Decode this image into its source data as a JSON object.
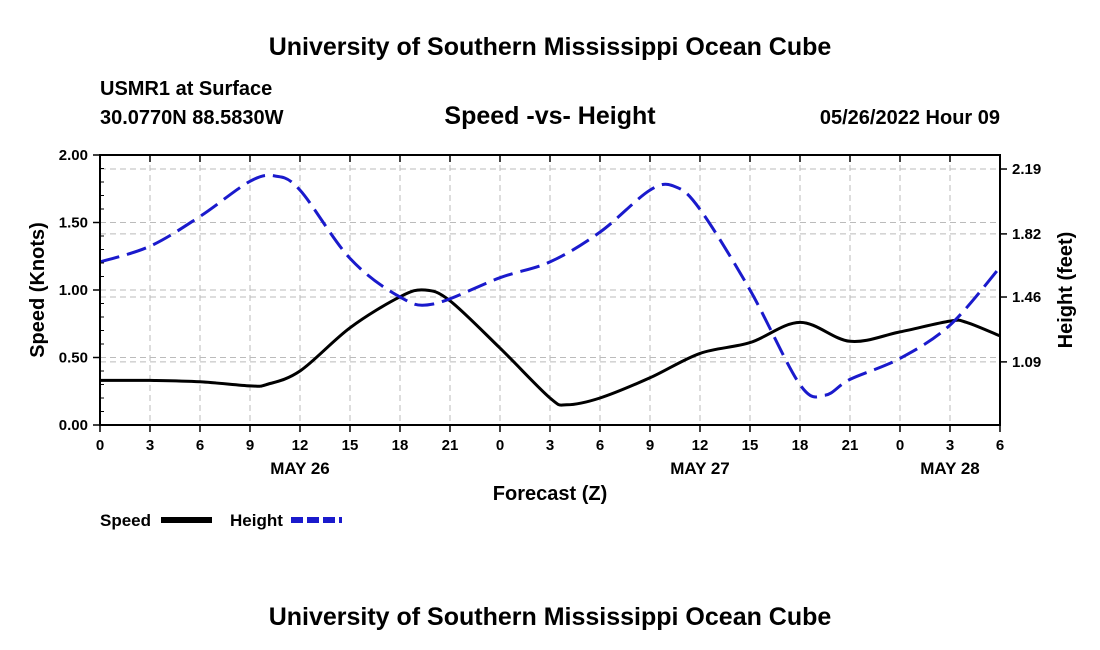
{
  "header": {
    "title": "University of Southern Mississippi Ocean Cube",
    "station": "USMR1 at Surface",
    "location": "30.0770N  88.5830W",
    "chart_title": "Speed -vs- Height",
    "timestamp": "05/26/2022 Hour 09"
  },
  "footer": {
    "title": "University of Southern Mississippi Ocean Cube"
  },
  "colors": {
    "speed": "#000000",
    "height": "#1a1acc",
    "grid": "#bbbbbb"
  },
  "chart_data": {
    "type": "line",
    "title": "Speed -vs- Height",
    "xlabel": "Forecast (Z)",
    "ylabel": "Speed (Knots)",
    "ylabel_right": "Height (feet)",
    "x_range": [
      0,
      54
    ],
    "x_ticks": [
      0,
      3,
      6,
      9,
      12,
      15,
      18,
      21,
      24,
      27,
      30,
      33,
      36,
      39,
      42,
      45,
      48,
      51,
      54
    ],
    "x_tick_labels": [
      "0",
      "3",
      "6",
      "9",
      "12",
      "15",
      "18",
      "21",
      "0",
      "3",
      "6",
      "9",
      "12",
      "15",
      "18",
      "21",
      "0",
      "3",
      "6"
    ],
    "date_labels": [
      {
        "hour": 12,
        "label": "MAY 26"
      },
      {
        "hour": 36,
        "label": "MAY 27"
      },
      {
        "hour": 51,
        "label": "MAY 28"
      }
    ],
    "ylim": [
      0,
      2.0
    ],
    "y_ticks": [
      0,
      0.5,
      1.0,
      1.5,
      2.0
    ],
    "y_tick_labels": [
      "0.00",
      "0.50",
      "1.00",
      "1.50",
      "2.00"
    ],
    "ylim_right": [
      0.73,
      2.27
    ],
    "y_ticks_right": [
      1.09,
      1.46,
      1.82,
      2.19
    ],
    "y_tick_labels_right": [
      "1.09",
      "1.46",
      "1.82",
      "2.19"
    ],
    "legend_position": "bottom-left",
    "series": [
      {
        "name": "Speed",
        "axis": "left",
        "style": "solid",
        "x": [
          0,
          3,
          6,
          9,
          10,
          12,
          15,
          18,
          19.5,
          21,
          24,
          27,
          28,
          30,
          33,
          36,
          39,
          42,
          45,
          48,
          51,
          52,
          54
        ],
        "values": [
          0.33,
          0.33,
          0.32,
          0.29,
          0.3,
          0.4,
          0.72,
          0.95,
          1.0,
          0.92,
          0.57,
          0.2,
          0.15,
          0.2,
          0.35,
          0.53,
          0.61,
          0.76,
          0.62,
          0.69,
          0.77,
          0.76,
          0.66
        ]
      },
      {
        "name": "Height",
        "axis": "right",
        "style": "dashed",
        "x": [
          0,
          3,
          6,
          9,
          10.5,
          12,
          15,
          18,
          20,
          24,
          27,
          30,
          33,
          34.5,
          36,
          39,
          42,
          43.5,
          45,
          48,
          51,
          54
        ],
        "values": [
          1.66,
          1.75,
          1.92,
          2.12,
          2.15,
          2.07,
          1.68,
          1.46,
          1.42,
          1.57,
          1.66,
          1.83,
          2.07,
          2.09,
          1.96,
          1.5,
          0.96,
          0.9,
          0.99,
          1.11,
          1.3,
          1.63
        ]
      }
    ]
  }
}
